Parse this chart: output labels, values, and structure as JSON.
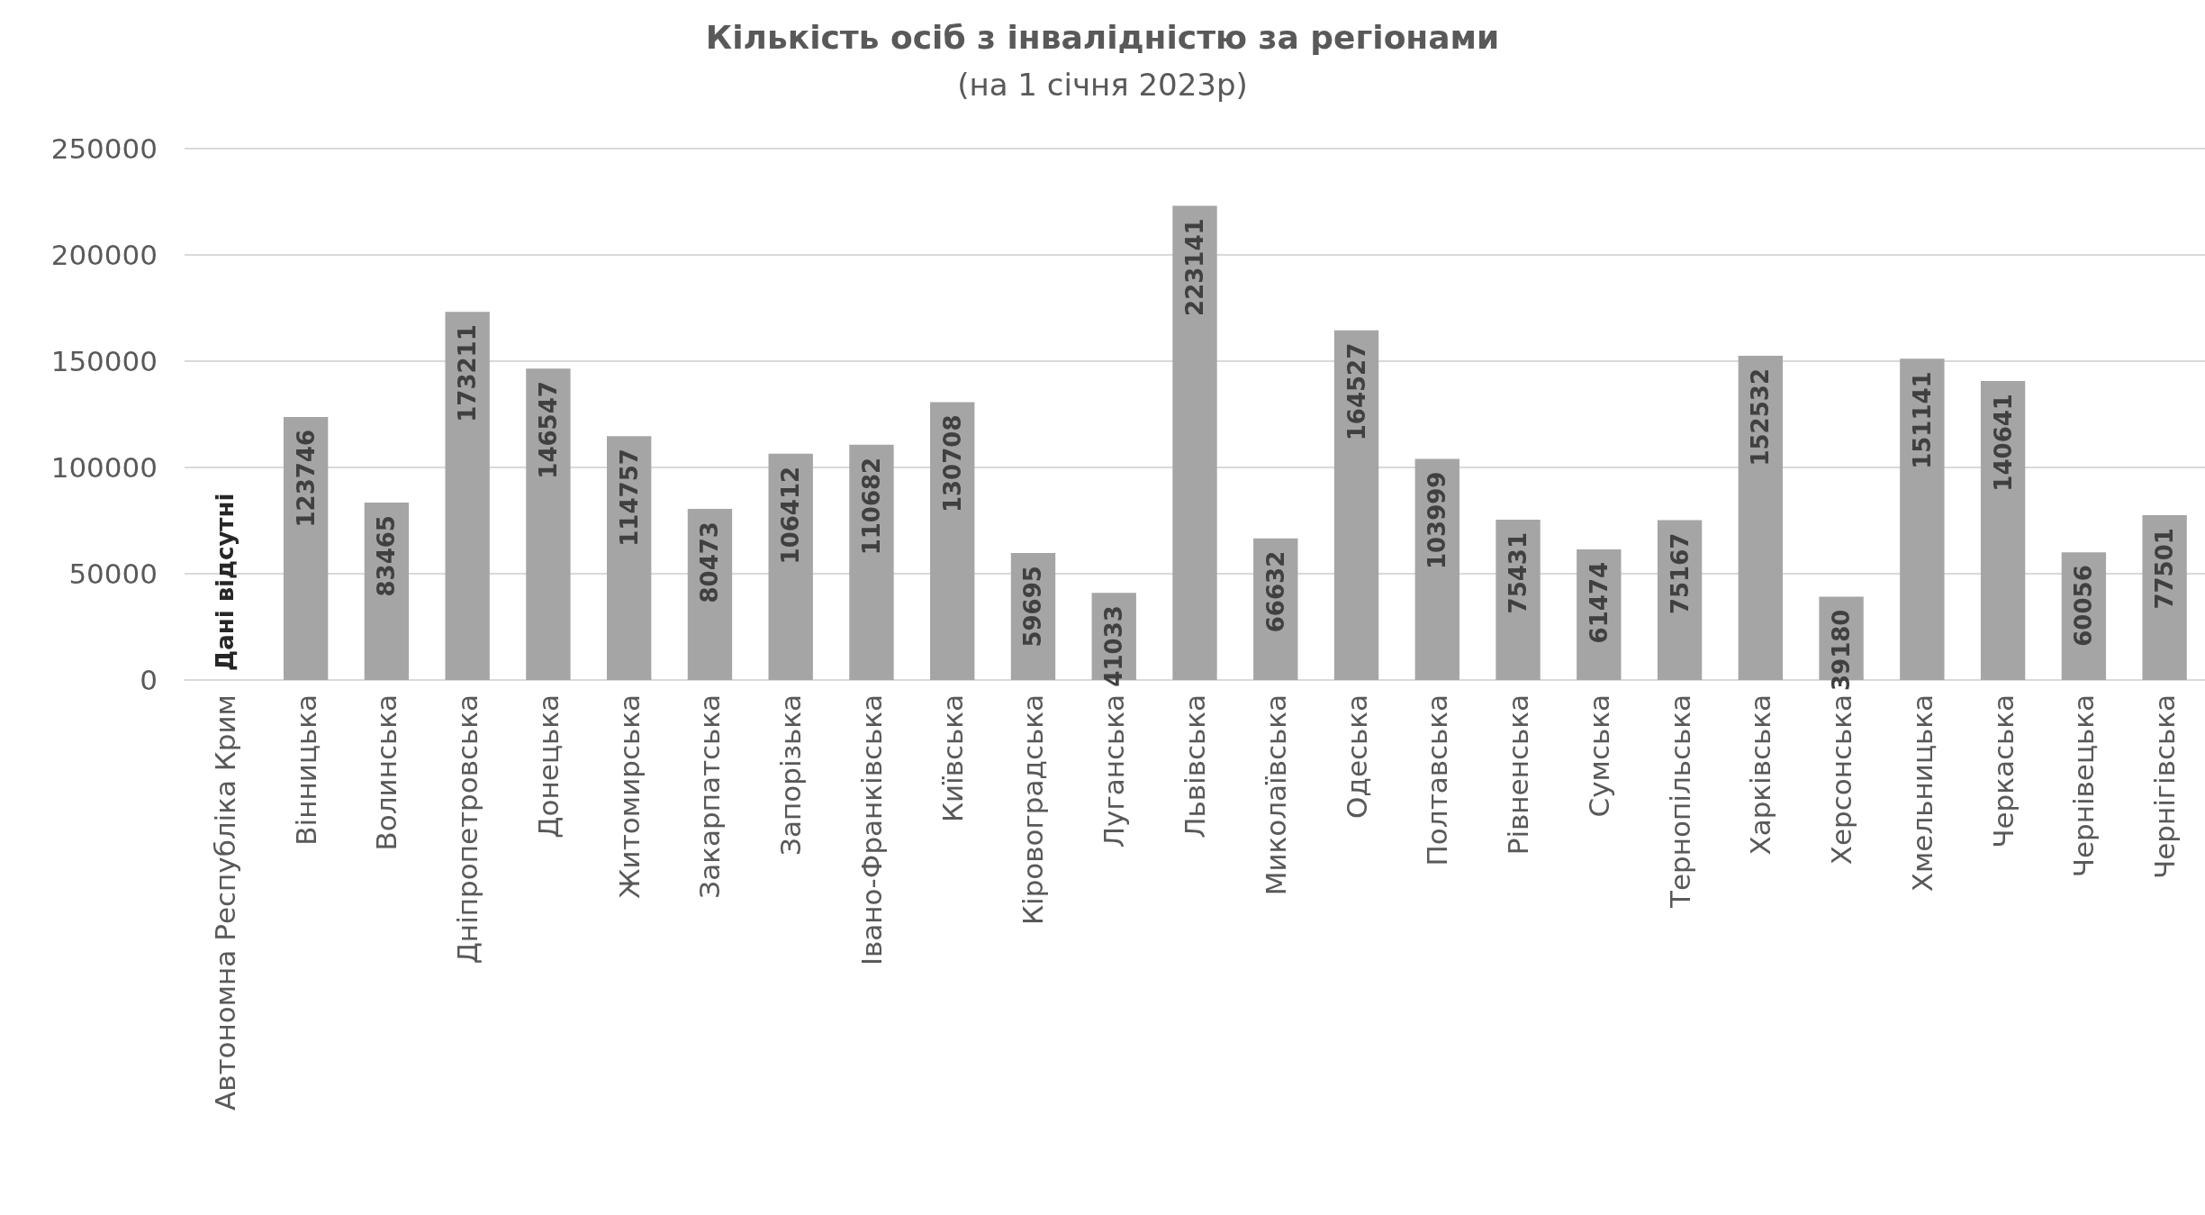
{
  "chart_data": {
    "type": "bar",
    "title": "Кількість осіб з інвалідністю за регіонами",
    "subtitle": "(на 1 січня 2023р)",
    "categories": [
      "Автономна Республіка Крим",
      "Вінницька",
      "Волинська",
      "Дніпропетровська",
      "Донецька",
      "Житомирська",
      "Закарпатська",
      "Запорізька",
      "Івано-Франківська",
      "Київська",
      "Кіровоградська",
      "Луганська",
      "Львівська",
      "Миколаївська",
      "Одеська",
      "Полтавська",
      "Рівненська",
      "Сумська",
      "Тернопільська",
      "Харківська",
      "Херсонська",
      "Хмельницька",
      "Черкаська",
      "Чернівецька",
      "Чернігівська"
    ],
    "values": [
      null,
      123746,
      83465,
      173211,
      146547,
      114757,
      80473,
      106412,
      110682,
      130708,
      59695,
      41033,
      223141,
      66632,
      164527,
      103999,
      75431,
      61474,
      75167,
      152532,
      39180,
      151141,
      140641,
      60056,
      77501
    ],
    "color": "#a5a5a5",
    "data_labels": true,
    "annotations": [
      "Дані відсутні"
    ],
    "ylim": [
      0,
      250000
    ],
    "yticks": [
      0,
      50000,
      100000,
      150000,
      200000,
      250000
    ],
    "grid": "y"
  }
}
